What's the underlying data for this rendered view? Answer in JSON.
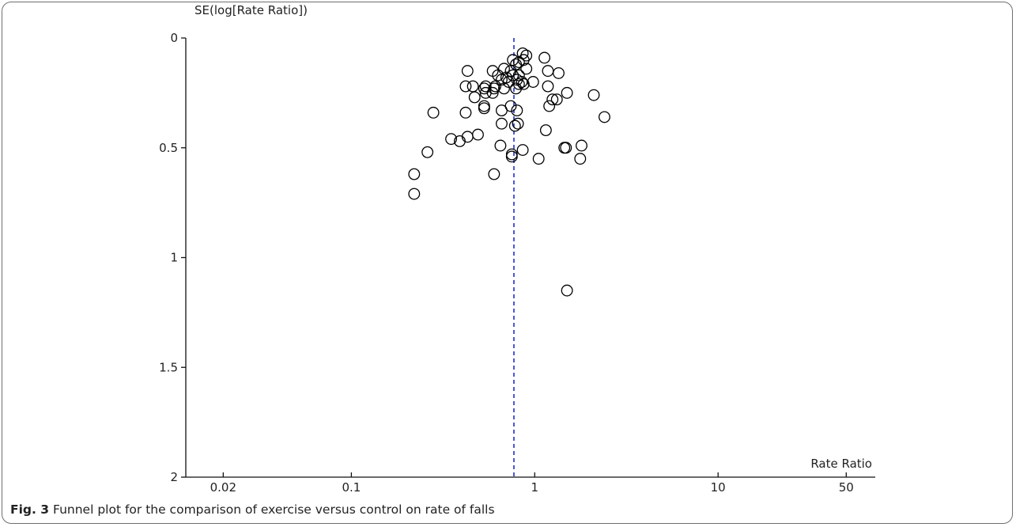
{
  "caption": {
    "label": "Fig. 3",
    "text": "Funnel plot for the comparison of exercise versus control on rate of falls"
  },
  "chart_data": {
    "type": "scatter",
    "title": "",
    "xlabel": "Rate Ratio",
    "ylabel": "SE(log[Rate Ratio])",
    "x_scale": "log",
    "xlim": [
      0.0125,
      72
    ],
    "ylim": [
      0,
      2
    ],
    "y_inverted": true,
    "x_ticks": [
      0.02,
      0.1,
      1,
      10,
      50
    ],
    "x_tick_labels": [
      "0.02",
      "0.1",
      "1",
      "10",
      "50"
    ],
    "y_ticks": [
      0,
      0.5,
      1,
      1.5,
      2
    ],
    "y_tick_labels": [
      "0",
      "0.5",
      "1",
      "1.5",
      "2"
    ],
    "pooled_estimate": 0.77,
    "reference_line_color": "#1f2fd0",
    "marker": "open-circle",
    "grid": false,
    "points": [
      {
        "x": 0.86,
        "y": 0.07
      },
      {
        "x": 0.9,
        "y": 0.08
      },
      {
        "x": 1.13,
        "y": 0.09
      },
      {
        "x": 0.76,
        "y": 0.1
      },
      {
        "x": 0.87,
        "y": 0.1
      },
      {
        "x": 0.82,
        "y": 0.11
      },
      {
        "x": 0.79,
        "y": 0.12
      },
      {
        "x": 0.68,
        "y": 0.14
      },
      {
        "x": 0.9,
        "y": 0.14
      },
      {
        "x": 0.43,
        "y": 0.15
      },
      {
        "x": 0.59,
        "y": 0.15
      },
      {
        "x": 0.74,
        "y": 0.15
      },
      {
        "x": 1.18,
        "y": 0.15
      },
      {
        "x": 1.35,
        "y": 0.16
      },
      {
        "x": 0.63,
        "y": 0.17
      },
      {
        "x": 0.76,
        "y": 0.17
      },
      {
        "x": 0.82,
        "y": 0.17
      },
      {
        "x": 0.7,
        "y": 0.18
      },
      {
        "x": 0.66,
        "y": 0.19
      },
      {
        "x": 0.8,
        "y": 0.19
      },
      {
        "x": 0.72,
        "y": 0.2
      },
      {
        "x": 0.85,
        "y": 0.2
      },
      {
        "x": 0.98,
        "y": 0.2
      },
      {
        "x": 0.82,
        "y": 0.21
      },
      {
        "x": 0.87,
        "y": 0.21
      },
      {
        "x": 0.42,
        "y": 0.22
      },
      {
        "x": 0.46,
        "y": 0.22
      },
      {
        "x": 0.54,
        "y": 0.22
      },
      {
        "x": 0.53,
        "y": 0.23
      },
      {
        "x": 0.61,
        "y": 0.22
      },
      {
        "x": 1.18,
        "y": 0.22
      },
      {
        "x": 0.6,
        "y": 0.23
      },
      {
        "x": 0.68,
        "y": 0.23
      },
      {
        "x": 0.79,
        "y": 0.23
      },
      {
        "x": 0.54,
        "y": 0.25
      },
      {
        "x": 0.59,
        "y": 0.25
      },
      {
        "x": 1.5,
        "y": 0.25
      },
      {
        "x": 2.1,
        "y": 0.26
      },
      {
        "x": 0.47,
        "y": 0.27
      },
      {
        "x": 1.25,
        "y": 0.28
      },
      {
        "x": 1.32,
        "y": 0.28
      },
      {
        "x": 0.53,
        "y": 0.31
      },
      {
        "x": 0.74,
        "y": 0.31
      },
      {
        "x": 1.2,
        "y": 0.31
      },
      {
        "x": 0.53,
        "y": 0.32
      },
      {
        "x": 0.66,
        "y": 0.33
      },
      {
        "x": 0.8,
        "y": 0.33
      },
      {
        "x": 0.28,
        "y": 0.34
      },
      {
        "x": 0.42,
        "y": 0.34
      },
      {
        "x": 2.4,
        "y": 0.36
      },
      {
        "x": 0.66,
        "y": 0.39
      },
      {
        "x": 0.81,
        "y": 0.39
      },
      {
        "x": 0.78,
        "y": 0.4
      },
      {
        "x": 1.15,
        "y": 0.42
      },
      {
        "x": 0.49,
        "y": 0.44
      },
      {
        "x": 0.43,
        "y": 0.45
      },
      {
        "x": 0.35,
        "y": 0.46
      },
      {
        "x": 0.39,
        "y": 0.47
      },
      {
        "x": 0.65,
        "y": 0.49
      },
      {
        "x": 1.8,
        "y": 0.49
      },
      {
        "x": 1.48,
        "y": 0.5
      },
      {
        "x": 1.45,
        "y": 0.5
      },
      {
        "x": 0.86,
        "y": 0.51
      },
      {
        "x": 0.26,
        "y": 0.52
      },
      {
        "x": 0.75,
        "y": 0.53
      },
      {
        "x": 0.75,
        "y": 0.54
      },
      {
        "x": 1.05,
        "y": 0.55
      },
      {
        "x": 1.77,
        "y": 0.55
      },
      {
        "x": 0.22,
        "y": 0.62
      },
      {
        "x": 0.6,
        "y": 0.62
      },
      {
        "x": 0.22,
        "y": 0.71
      },
      {
        "x": 1.5,
        "y": 1.15
      }
    ]
  }
}
